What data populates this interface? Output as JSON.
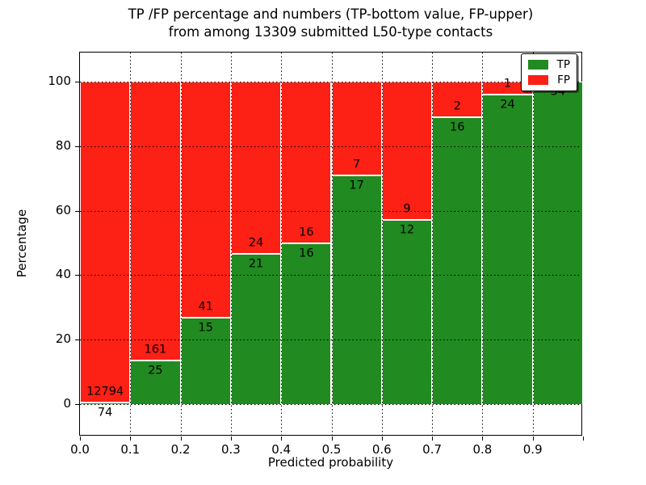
{
  "title": {
    "line1": "TP /FP percentage and numbers (TP-bottom value, FP-upper)",
    "line2": "from among 13309 submitted L50-type contacts"
  },
  "axes": {
    "x_label": "Predicted probability",
    "y_label": "Percentage",
    "x_tick_labels": [
      "0.0",
      "0.1",
      "0.2",
      "0.3",
      "0.4",
      "0.5",
      "0.6",
      "0.7",
      "0.8",
      "0.9"
    ],
    "y_tick_labels": [
      "0",
      "20",
      "40",
      "60",
      "80",
      "100"
    ],
    "y_tick_values": [
      0,
      20,
      40,
      60,
      80,
      100
    ]
  },
  "legend": {
    "entries": [
      {
        "label": "TP",
        "color": "#218a21"
      },
      {
        "label": "FP",
        "color": "#fc2015"
      }
    ]
  },
  "colors": {
    "tp_green": "#218a21",
    "fp_red": "#fc2015",
    "grid": "#000000",
    "frame": "#000000"
  },
  "chart_data": {
    "type": "bar",
    "stacked": true,
    "normalized_to_percent": true,
    "title": "TP /FP percentage and numbers (TP-bottom value, FP-upper) from among 13309 submitted L50-type contacts",
    "xlabel": "Predicted probability",
    "ylabel": "Percentage",
    "bin_edges": [
      0.0,
      0.1,
      0.2,
      0.3,
      0.4,
      0.5,
      0.6,
      0.7,
      0.8,
      0.9,
      1.0
    ],
    "categories": [
      "0.0-0.1",
      "0.1-0.2",
      "0.2-0.3",
      "0.3-0.4",
      "0.4-0.5",
      "0.5-0.6",
      "0.6-0.7",
      "0.7-0.8",
      "0.8-0.9",
      "0.9-1.0"
    ],
    "series": [
      {
        "name": "TP",
        "color": "#218a21",
        "counts": [
          74,
          25,
          15,
          21,
          16,
          17,
          12,
          16,
          24,
          34
        ]
      },
      {
        "name": "FP",
        "color": "#fc2015",
        "counts": [
          12794,
          161,
          41,
          24,
          16,
          7,
          9,
          2,
          1,
          0
        ]
      }
    ],
    "tp_percent_of_bin": [
      0.58,
      13.44,
      26.79,
      46.67,
      50.0,
      70.83,
      57.14,
      88.89,
      96.0,
      100.0
    ],
    "ylim": [
      -10,
      109
    ],
    "grid": "dotted",
    "legend_position": "upper right",
    "annotation_note": "TP count printed just below the TP/FP boundary of each bar, FP count just above it"
  }
}
